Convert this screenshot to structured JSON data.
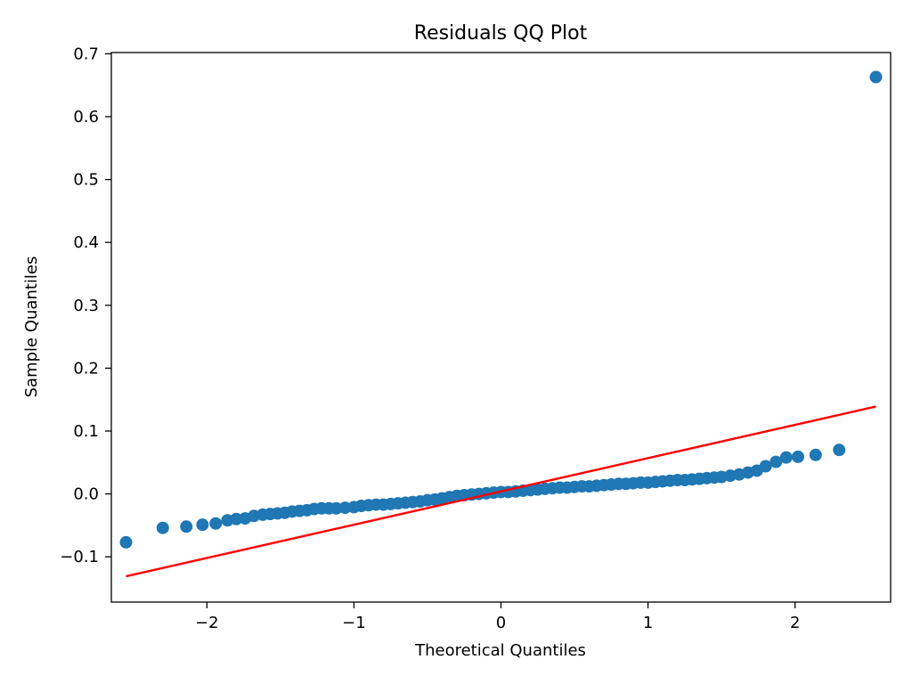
{
  "chart_data": {
    "type": "scatter",
    "title": "Residuals QQ Plot",
    "xlabel": "Theoretical Quantiles",
    "ylabel": "Sample Quantiles",
    "xlim": [
      -2.65,
      2.65
    ],
    "ylim": [
      -0.172,
      0.702
    ],
    "xticks": [
      {
        "value": -2,
        "label": "−2"
      },
      {
        "value": -1,
        "label": "−1"
      },
      {
        "value": 0,
        "label": "0"
      },
      {
        "value": 1,
        "label": "1"
      },
      {
        "value": 2,
        "label": "2"
      }
    ],
    "yticks": [
      {
        "value": -0.1,
        "label": "−0.1"
      },
      {
        "value": 0.0,
        "label": "0.0"
      },
      {
        "value": 0.1,
        "label": "0.1"
      },
      {
        "value": 0.2,
        "label": "0.2"
      },
      {
        "value": 0.3,
        "label": "0.3"
      },
      {
        "value": 0.4,
        "label": "0.4"
      },
      {
        "value": 0.5,
        "label": "0.5"
      },
      {
        "value": 0.6,
        "label": "0.6"
      },
      {
        "value": 0.7,
        "label": "0.7"
      }
    ],
    "grid": false,
    "point_color": "#1f77b4",
    "line_color": "#ff0000",
    "reference_line": {
      "x": [
        -2.55,
        2.55
      ],
      "y": [
        -0.131,
        0.139
      ]
    },
    "series": [
      {
        "name": "sample quantiles",
        "points": [
          [
            -2.55,
            -0.077
          ],
          [
            -2.3,
            -0.054
          ],
          [
            -2.14,
            -0.052
          ],
          [
            -2.03,
            -0.049
          ],
          [
            -1.94,
            -0.047
          ],
          [
            -1.86,
            -0.042
          ],
          [
            -1.8,
            -0.04
          ],
          [
            -1.74,
            -0.039
          ],
          [
            -1.68,
            -0.035
          ],
          [
            -1.62,
            -0.033
          ],
          [
            -1.57,
            -0.032
          ],
          [
            -1.52,
            -0.031
          ],
          [
            -1.47,
            -0.03
          ],
          [
            -1.42,
            -0.028
          ],
          [
            -1.37,
            -0.027
          ],
          [
            -1.32,
            -0.026
          ],
          [
            -1.27,
            -0.024
          ],
          [
            -1.22,
            -0.023
          ],
          [
            -1.17,
            -0.023
          ],
          [
            -1.12,
            -0.023
          ],
          [
            -1.06,
            -0.022
          ],
          [
            -1.0,
            -0.021
          ],
          [
            -0.95,
            -0.019
          ],
          [
            -0.9,
            -0.018
          ],
          [
            -0.85,
            -0.017
          ],
          [
            -0.8,
            -0.017
          ],
          [
            -0.75,
            -0.016
          ],
          [
            -0.7,
            -0.015
          ],
          [
            -0.65,
            -0.014
          ],
          [
            -0.6,
            -0.013
          ],
          [
            -0.55,
            -0.012
          ],
          [
            -0.5,
            -0.01
          ],
          [
            -0.45,
            -0.009
          ],
          [
            -0.4,
            -0.007
          ],
          [
            -0.35,
            -0.005
          ],
          [
            -0.3,
            -0.003
          ],
          [
            -0.25,
            -0.002
          ],
          [
            -0.2,
            -0.001
          ],
          [
            -0.15,
            0.0
          ],
          [
            -0.1,
            0.001
          ],
          [
            -0.05,
            0.002
          ],
          [
            0.0,
            0.003
          ],
          [
            0.05,
            0.003
          ],
          [
            0.1,
            0.004
          ],
          [
            0.15,
            0.005
          ],
          [
            0.2,
            0.006
          ],
          [
            0.25,
            0.007
          ],
          [
            0.3,
            0.008
          ],
          [
            0.35,
            0.009
          ],
          [
            0.4,
            0.01
          ],
          [
            0.45,
            0.01
          ],
          [
            0.5,
            0.011
          ],
          [
            0.55,
            0.012
          ],
          [
            0.6,
            0.012
          ],
          [
            0.65,
            0.013
          ],
          [
            0.7,
            0.014
          ],
          [
            0.75,
            0.015
          ],
          [
            0.8,
            0.016
          ],
          [
            0.85,
            0.016
          ],
          [
            0.9,
            0.017
          ],
          [
            0.95,
            0.018
          ],
          [
            1.0,
            0.018
          ],
          [
            1.05,
            0.019
          ],
          [
            1.1,
            0.02
          ],
          [
            1.15,
            0.021
          ],
          [
            1.2,
            0.022
          ],
          [
            1.25,
            0.022
          ],
          [
            1.3,
            0.023
          ],
          [
            1.35,
            0.024
          ],
          [
            1.4,
            0.025
          ],
          [
            1.45,
            0.026
          ],
          [
            1.5,
            0.027
          ],
          [
            1.56,
            0.029
          ],
          [
            1.62,
            0.031
          ],
          [
            1.68,
            0.034
          ],
          [
            1.74,
            0.037
          ],
          [
            1.8,
            0.044
          ],
          [
            1.87,
            0.051
          ],
          [
            1.94,
            0.058
          ],
          [
            2.02,
            0.059
          ],
          [
            2.14,
            0.062
          ],
          [
            2.3,
            0.07
          ],
          [
            2.55,
            0.663
          ]
        ]
      }
    ]
  }
}
